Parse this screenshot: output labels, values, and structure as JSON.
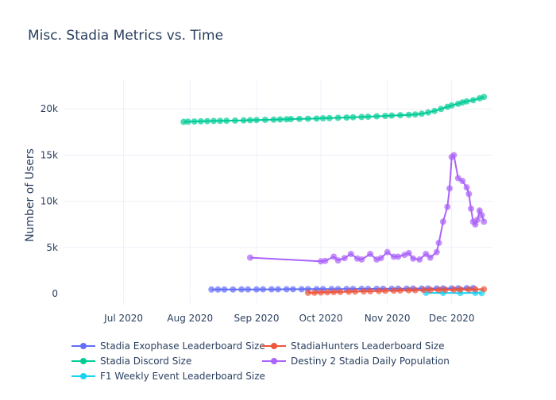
{
  "chart_data": {
    "type": "line",
    "title": "Misc. Stadia Metrics vs. Time",
    "xlabel": "",
    "ylabel": "Number of Users",
    "x_ticks": [
      "Jul 2020",
      "Aug 2020",
      "Sep 2020",
      "Oct 2020",
      "Nov 2020",
      "Dec 2020"
    ],
    "y_ticks": [
      "0",
      "5k",
      "10k",
      "15k",
      "20k"
    ],
    "xlim": [
      "2020-06-03",
      "2020-12-20"
    ],
    "ylim": [
      -1200,
      23200
    ],
    "grid": true,
    "legend_position": "bottom",
    "series": [
      {
        "name": "Stadia Exophase Leaderboard Size",
        "color": "#636efa",
        "points": [
          [
            "2020-08-11",
            450
          ],
          [
            "2020-08-14",
            450
          ],
          [
            "2020-08-17",
            450
          ],
          [
            "2020-08-21",
            450
          ],
          [
            "2020-08-25",
            460
          ],
          [
            "2020-08-28",
            460
          ],
          [
            "2020-09-01",
            460
          ],
          [
            "2020-09-04",
            470
          ],
          [
            "2020-09-08",
            470
          ],
          [
            "2020-09-11",
            470
          ],
          [
            "2020-09-15",
            480
          ],
          [
            "2020-09-18",
            480
          ],
          [
            "2020-09-22",
            480
          ],
          [
            "2020-09-25",
            490
          ],
          [
            "2020-09-29",
            490
          ],
          [
            "2020-10-02",
            500
          ],
          [
            "2020-10-06",
            500
          ],
          [
            "2020-10-09",
            500
          ],
          [
            "2020-10-13",
            510
          ],
          [
            "2020-10-16",
            510
          ],
          [
            "2020-10-20",
            520
          ],
          [
            "2020-10-23",
            520
          ],
          [
            "2020-10-27",
            520
          ],
          [
            "2020-10-30",
            530
          ],
          [
            "2020-11-03",
            530
          ],
          [
            "2020-11-06",
            540
          ],
          [
            "2020-11-10",
            540
          ],
          [
            "2020-11-13",
            550
          ],
          [
            "2020-11-17",
            550
          ],
          [
            "2020-11-20",
            560
          ],
          [
            "2020-11-24",
            560
          ],
          [
            "2020-11-27",
            570
          ],
          [
            "2020-12-01",
            570
          ],
          [
            "2020-12-04",
            580
          ],
          [
            "2020-12-08",
            590
          ],
          [
            "2020-12-11",
            600
          ]
        ]
      },
      {
        "name": "Stadia Discord Size",
        "color": "#00cc96",
        "points": [
          [
            "2020-07-29",
            18600
          ],
          [
            "2020-07-31",
            18620
          ],
          [
            "2020-08-03",
            18640
          ],
          [
            "2020-08-06",
            18660
          ],
          [
            "2020-08-09",
            18680
          ],
          [
            "2020-08-12",
            18700
          ],
          [
            "2020-08-15",
            18710
          ],
          [
            "2020-08-18",
            18720
          ],
          [
            "2020-08-22",
            18740
          ],
          [
            "2020-08-26",
            18760
          ],
          [
            "2020-08-29",
            18780
          ],
          [
            "2020-09-01",
            18800
          ],
          [
            "2020-09-05",
            18820
          ],
          [
            "2020-09-09",
            18840
          ],
          [
            "2020-09-12",
            18860
          ],
          [
            "2020-09-15",
            18880
          ],
          [
            "2020-09-17",
            18900
          ],
          [
            "2020-09-21",
            18920
          ],
          [
            "2020-09-25",
            18940
          ],
          [
            "2020-09-29",
            18960
          ],
          [
            "2020-10-02",
            18990
          ],
          [
            "2020-10-05",
            19010
          ],
          [
            "2020-10-09",
            19040
          ],
          [
            "2020-10-13",
            19070
          ],
          [
            "2020-10-16",
            19100
          ],
          [
            "2020-10-20",
            19130
          ],
          [
            "2020-10-23",
            19160
          ],
          [
            "2020-10-27",
            19200
          ],
          [
            "2020-10-31",
            19240
          ],
          [
            "2020-11-03",
            19280
          ],
          [
            "2020-11-07",
            19320
          ],
          [
            "2020-11-11",
            19360
          ],
          [
            "2020-11-14",
            19400
          ],
          [
            "2020-11-17",
            19480
          ],
          [
            "2020-11-20",
            19620
          ],
          [
            "2020-11-23",
            19780
          ],
          [
            "2020-11-26",
            20000
          ],
          [
            "2020-11-29",
            20220
          ],
          [
            "2020-12-01",
            20380
          ],
          [
            "2020-12-04",
            20550
          ],
          [
            "2020-12-06",
            20700
          ],
          [
            "2020-12-08",
            20820
          ],
          [
            "2020-12-11",
            20950
          ],
          [
            "2020-12-14",
            21150
          ],
          [
            "2020-12-16",
            21300
          ]
        ]
      },
      {
        "name": "F1 Weekly Event Leaderboard Size",
        "color": "#19d3f3",
        "points": [
          [
            "2020-11-19",
            90
          ],
          [
            "2020-11-27",
            80
          ],
          [
            "2020-12-05",
            70
          ],
          [
            "2020-12-12",
            90
          ],
          [
            "2020-12-15",
            60
          ]
        ]
      },
      {
        "name": "StadiaHunters Leaderboard Size",
        "color": "#ef553b",
        "points": [
          [
            "2020-09-25",
            100
          ],
          [
            "2020-09-28",
            110
          ],
          [
            "2020-10-01",
            130
          ],
          [
            "2020-10-04",
            150
          ],
          [
            "2020-10-07",
            170
          ],
          [
            "2020-10-10",
            190
          ],
          [
            "2020-10-14",
            210
          ],
          [
            "2020-10-17",
            230
          ],
          [
            "2020-10-21",
            250
          ],
          [
            "2020-10-24",
            270
          ],
          [
            "2020-10-28",
            290
          ],
          [
            "2020-10-31",
            310
          ],
          [
            "2020-11-04",
            330
          ],
          [
            "2020-11-07",
            350
          ],
          [
            "2020-11-11",
            370
          ],
          [
            "2020-11-14",
            380
          ],
          [
            "2020-11-18",
            400
          ],
          [
            "2020-11-21",
            410
          ],
          [
            "2020-11-25",
            420
          ],
          [
            "2020-11-28",
            430
          ],
          [
            "2020-12-02",
            440
          ],
          [
            "2020-12-05",
            450
          ],
          [
            "2020-12-09",
            460
          ],
          [
            "2020-12-12",
            470
          ],
          [
            "2020-12-16",
            480
          ]
        ]
      },
      {
        "name": "Destiny 2 Stadia Daily Population",
        "color": "#ab63fa",
        "points": [
          [
            "2020-08-29",
            3900
          ],
          [
            "2020-10-01",
            3500
          ],
          [
            "2020-10-03",
            3550
          ],
          [
            "2020-10-07",
            4000
          ],
          [
            "2020-10-09",
            3600
          ],
          [
            "2020-10-12",
            3850
          ],
          [
            "2020-10-15",
            4300
          ],
          [
            "2020-10-18",
            3800
          ],
          [
            "2020-10-20",
            3700
          ],
          [
            "2020-10-24",
            4300
          ],
          [
            "2020-10-27",
            3700
          ],
          [
            "2020-10-29",
            3850
          ],
          [
            "2020-11-01",
            4500
          ],
          [
            "2020-11-04",
            4000
          ],
          [
            "2020-11-06",
            4000
          ],
          [
            "2020-11-09",
            4200
          ],
          [
            "2020-11-11",
            4400
          ],
          [
            "2020-11-13",
            3800
          ],
          [
            "2020-11-16",
            3700
          ],
          [
            "2020-11-19",
            4300
          ],
          [
            "2020-11-21",
            3900
          ],
          [
            "2020-11-24",
            4500
          ],
          [
            "2020-11-25",
            5500
          ],
          [
            "2020-11-27",
            7800
          ],
          [
            "2020-11-29",
            9400
          ],
          [
            "2020-11-30",
            11400
          ],
          [
            "2020-12-01",
            14800
          ],
          [
            "2020-12-02",
            15000
          ],
          [
            "2020-12-04",
            12500
          ],
          [
            "2020-12-06",
            12200
          ],
          [
            "2020-12-08",
            11500
          ],
          [
            "2020-12-09",
            10800
          ],
          [
            "2020-12-10",
            9200
          ],
          [
            "2020-12-11",
            7800
          ],
          [
            "2020-12-12",
            7500
          ],
          [
            "2020-12-13",
            8000
          ],
          [
            "2020-12-14",
            9000
          ],
          [
            "2020-12-15",
            8500
          ],
          [
            "2020-12-16",
            7800
          ]
        ]
      }
    ]
  }
}
